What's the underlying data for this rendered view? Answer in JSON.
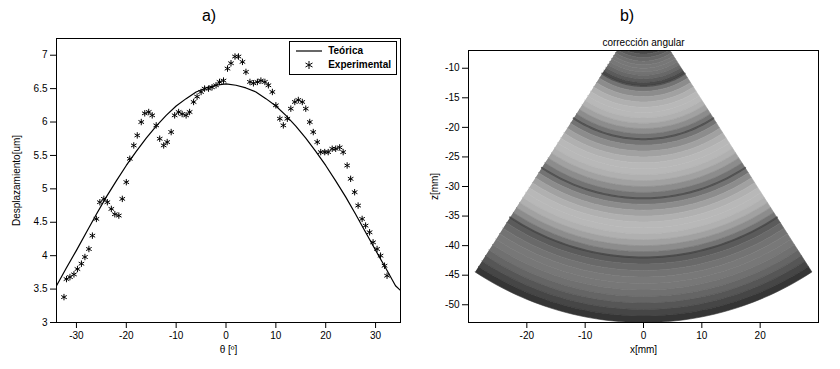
{
  "chart_data": [
    {
      "type": "line",
      "panel": "a)",
      "xlabel": "θ [º]",
      "ylabel": "Desplazamiento[um]",
      "xlim": [
        -34,
        35
      ],
      "xticks": [
        -30,
        -20,
        -10,
        0,
        10,
        20,
        30
      ],
      "ylim": [
        3,
        7.25
      ],
      "yticks": [
        3,
        3.5,
        4,
        4.5,
        5,
        5.5,
        6,
        6.5,
        7
      ],
      "grid": false,
      "legend": "top-right",
      "series": [
        {
          "name": "Teórica",
          "type": "line",
          "color": "#000000",
          "line_style": "solid",
          "x": [
            -34,
            -32,
            -30,
            -28,
            -26,
            -24,
            -22,
            -20,
            -18,
            -16,
            -14,
            -12,
            -10,
            -8,
            -6,
            -4,
            -2,
            0,
            2,
            4,
            6,
            8,
            10,
            12,
            14,
            16,
            18,
            20,
            22,
            24,
            26,
            28,
            30,
            32,
            34,
            35
          ],
          "values": [
            3.55,
            3.82,
            4.08,
            4.35,
            4.62,
            4.88,
            5.12,
            5.35,
            5.56,
            5.76,
            5.94,
            6.1,
            6.24,
            6.35,
            6.45,
            6.51,
            6.55,
            6.57,
            6.55,
            6.51,
            6.45,
            6.35,
            6.24,
            6.1,
            5.94,
            5.76,
            5.56,
            5.35,
            5.12,
            4.88,
            4.62,
            4.35,
            4.08,
            3.82,
            3.55,
            3.48
          ]
        },
        {
          "name": "Experimental",
          "type": "scatter",
          "color": "#000000",
          "marker": "asterisk",
          "x": [
            -32.5,
            -32,
            -31.3,
            -30.5,
            -29.8,
            -29,
            -28.3,
            -27.5,
            -26.8,
            -26,
            -25.3,
            -24.5,
            -23.8,
            -23,
            -22.3,
            -21.5,
            -20.8,
            -20,
            -19.3,
            -18.5,
            -17.8,
            -17,
            -16.3,
            -15.5,
            -14.8,
            -14,
            -13.3,
            -12.5,
            -11.8,
            -11,
            -10.3,
            -9.5,
            -8.8,
            -8,
            -7.3,
            -6.5,
            -5.8,
            -5,
            -4.3,
            -3.5,
            -2.8,
            -2,
            -1.3,
            -0.5,
            0.3,
            1,
            1.8,
            2.5,
            3.3,
            4,
            4.8,
            5.5,
            6.3,
            7,
            7.8,
            8.5,
            9.3,
            10,
            10.8,
            11.5,
            12.3,
            13,
            13.8,
            14.5,
            15.3,
            16,
            16.8,
            17.5,
            18.3,
            19,
            19.8,
            20.5,
            21.3,
            22,
            22.8,
            23.5,
            24.3,
            25,
            25.8,
            26.5,
            27.3,
            28,
            28.8,
            29.5,
            30.3,
            31,
            31.8,
            32.3
          ],
          "values": [
            3.38,
            3.65,
            3.68,
            3.72,
            3.8,
            3.88,
            3.98,
            4.1,
            4.3,
            4.55,
            4.8,
            4.85,
            4.8,
            4.7,
            4.62,
            4.6,
            4.85,
            5.1,
            5.45,
            5.65,
            5.8,
            6.0,
            6.13,
            6.15,
            6.1,
            5.95,
            5.75,
            5.65,
            5.7,
            5.85,
            6.1,
            6.15,
            6.12,
            6.1,
            6.15,
            6.3,
            6.38,
            6.45,
            6.5,
            6.5,
            6.52,
            6.55,
            6.6,
            6.62,
            6.8,
            6.88,
            6.98,
            6.98,
            6.9,
            6.75,
            6.6,
            6.58,
            6.6,
            6.62,
            6.6,
            6.55,
            6.45,
            6.25,
            6.05,
            5.95,
            6.05,
            6.2,
            6.3,
            6.33,
            6.3,
            6.2,
            6.0,
            5.85,
            5.7,
            5.55,
            5.55,
            5.55,
            5.6,
            5.6,
            5.62,
            5.55,
            5.35,
            5.15,
            4.95,
            4.75,
            4.55,
            4.45,
            4.35,
            4.2,
            4.1,
            4.0,
            3.85,
            3.7
          ]
        }
      ]
    },
    {
      "type": "image",
      "panel": "b)",
      "title": "corrección angular",
      "xlabel": "x[mm]",
      "ylabel": "z[mm]",
      "xlim": [
        -30,
        30
      ],
      "xticks": [
        -20,
        -10,
        0,
        10,
        20
      ],
      "ylim": [
        -53,
        -7
      ],
      "yticks": [
        -10,
        -15,
        -20,
        -25,
        -30,
        -35,
        -40,
        -45,
        -50
      ],
      "sector": {
        "theta_range": [
          -33,
          33
        ],
        "r_range": [
          7,
          53
        ],
        "band_edges": [
          13,
          22,
          32,
          42
        ]
      }
    }
  ]
}
